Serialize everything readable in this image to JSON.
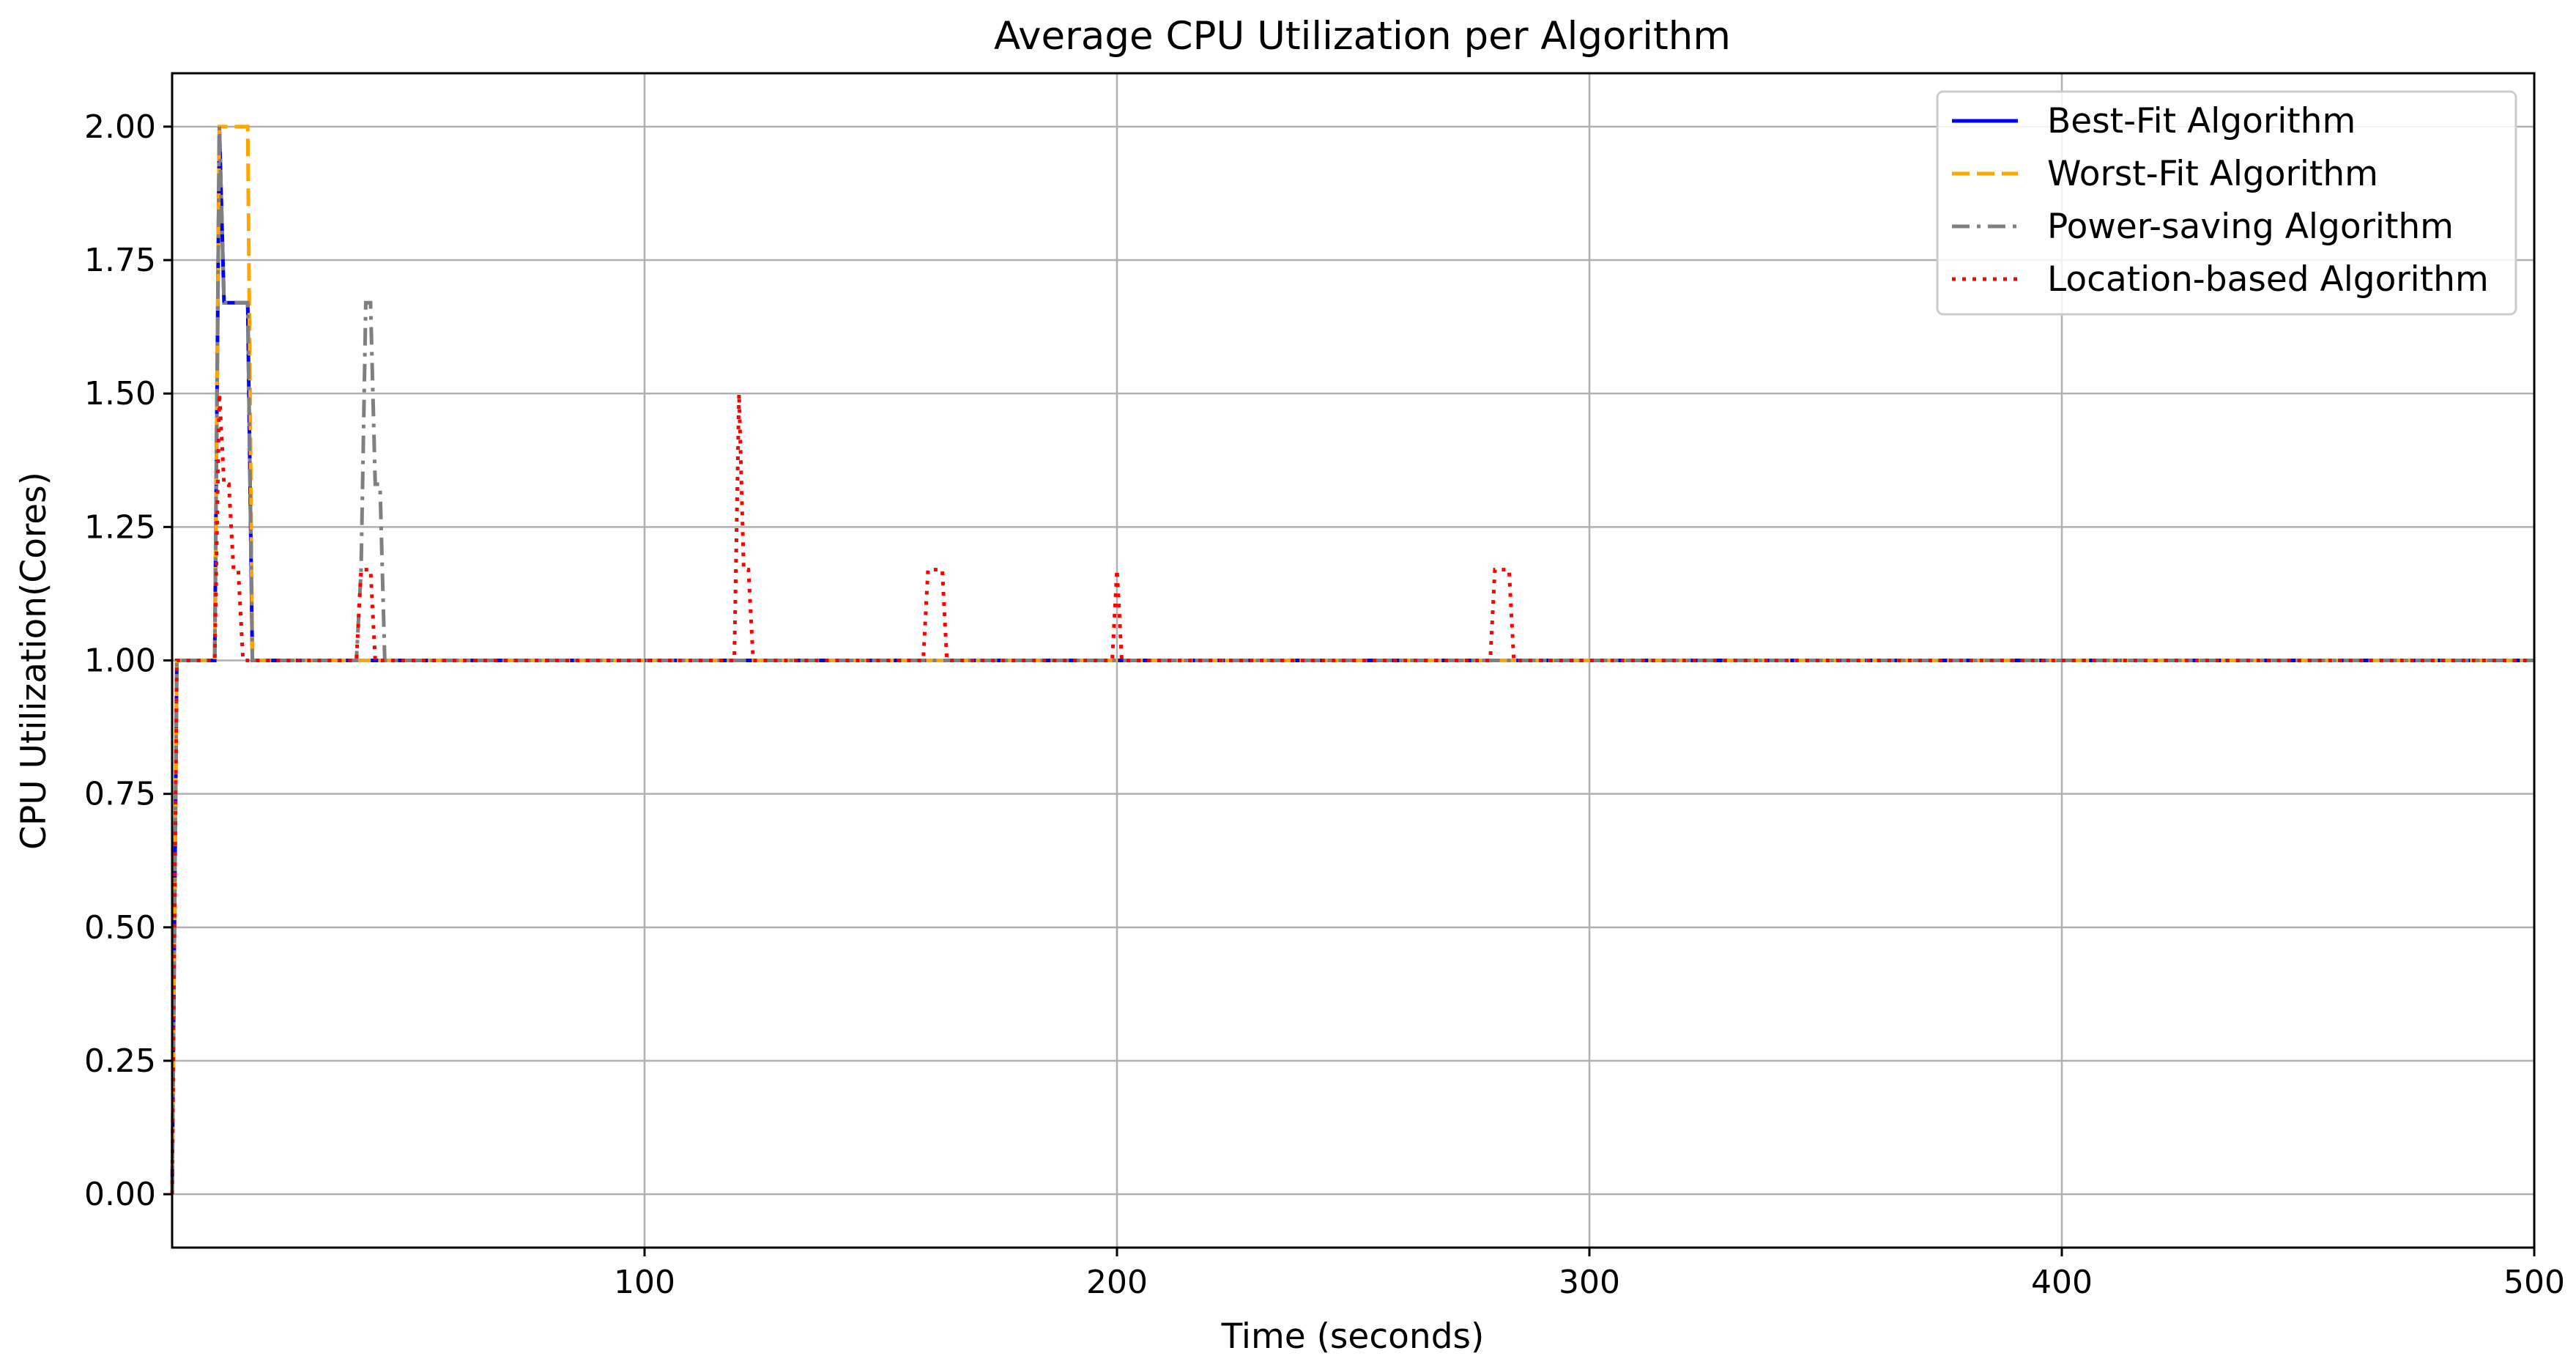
{
  "chart_data": {
    "type": "line",
    "title": "Average CPU Utilization per Algorithm",
    "xlabel": "Time (seconds)",
    "ylabel": "CPU Utilization(Cores)",
    "xlim": [
      0,
      500
    ],
    "ylim": [
      -0.1,
      2.1
    ],
    "xticks": [
      100,
      200,
      300,
      400,
      500
    ],
    "xtick_labels": [
      "100",
      "200",
      "300",
      "400",
      "500"
    ],
    "yticks": [
      0.0,
      0.25,
      0.5,
      0.75,
      1.0,
      1.25,
      1.5,
      1.75,
      2.0
    ],
    "ytick_labels": [
      "0.00",
      "0.25",
      "0.50",
      "0.75",
      "1.00",
      "1.25",
      "1.50",
      "1.75",
      "2.00"
    ],
    "grid": true,
    "legend_position": "upper right",
    "series": [
      {
        "name": "Best-Fit Algorithm",
        "color": "#0000ff",
        "line_style": "solid",
        "x": [
          0,
          1,
          9,
          10,
          11,
          12,
          16,
          17,
          500
        ],
        "y": [
          0,
          1,
          1,
          2,
          1.67,
          1.67,
          1.67,
          1,
          1
        ]
      },
      {
        "name": "Worst-Fit Algorithm",
        "color": "#ffa500",
        "line_style": "dashed",
        "x": [
          0,
          1,
          9,
          10,
          16,
          17,
          500
        ],
        "y": [
          0,
          1,
          1,
          2,
          2,
          1,
          1
        ]
      },
      {
        "name": "Power-saving Algorithm",
        "color": "#808080",
        "line_style": "dashdot",
        "x": [
          0,
          1,
          9,
          10,
          11,
          12,
          16,
          17,
          39,
          40,
          41,
          42,
          43,
          44,
          45,
          46,
          500
        ],
        "y": [
          0,
          1,
          1,
          2,
          1.67,
          1.67,
          1.67,
          1,
          1,
          1.17,
          1.67,
          1.67,
          1.33,
          1.33,
          1,
          1,
          1
        ]
      },
      {
        "name": "Location-based Algorithm",
        "color": "#ff0000",
        "line_style": "dotted",
        "x": [
          0,
          1,
          9,
          10,
          11,
          12,
          13,
          14,
          15,
          39,
          40,
          41,
          42,
          43,
          44,
          119,
          120,
          121,
          122,
          123,
          159,
          160,
          161,
          162,
          163,
          164,
          199,
          200,
          201,
          279,
          280,
          281,
          282,
          283,
          284,
          500
        ],
        "y": [
          0,
          1,
          1,
          1.5,
          1.33,
          1.33,
          1.17,
          1.17,
          1,
          1,
          1.17,
          1.17,
          1.17,
          1,
          1,
          1,
          1.5,
          1.17,
          1.17,
          1,
          1,
          1.17,
          1.17,
          1.17,
          1.17,
          1,
          1,
          1.17,
          1,
          1,
          1.17,
          1.17,
          1.17,
          1.17,
          1,
          1
        ]
      }
    ]
  }
}
